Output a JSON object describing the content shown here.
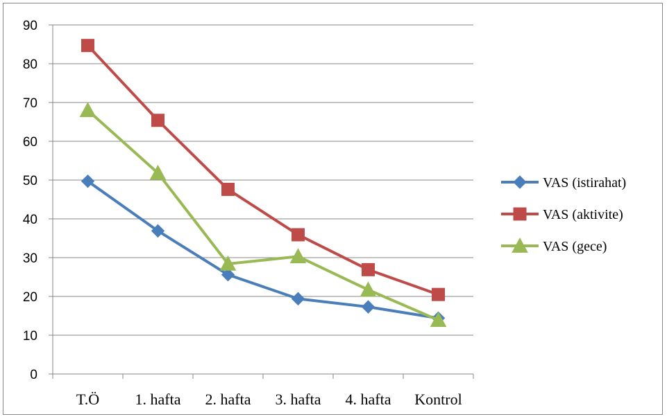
{
  "chart_data": {
    "type": "line",
    "categories": [
      "T.Ö",
      "1. hafta",
      "2. hafta",
      "3. hafta",
      "4. hafta",
      "Kontrol"
    ],
    "ylim": [
      0,
      90
    ],
    "yticks": [
      0,
      10,
      20,
      30,
      40,
      50,
      60,
      70,
      80,
      90
    ],
    "grid": true,
    "legend_position": "right",
    "series": [
      {
        "name": "VAS (istirahat)",
        "color": "#4A7EBB",
        "marker": "diamond",
        "values": [
          49.7,
          36.9,
          25.6,
          19.4,
          17.3,
          14.4
        ]
      },
      {
        "name": "VAS (aktivite)",
        "color": "#BE4B48",
        "marker": "square",
        "values": [
          84.7,
          65.4,
          47.6,
          35.9,
          26.9,
          20.5
        ]
      },
      {
        "name": "VAS (gece)",
        "color": "#98B954",
        "marker": "triangle",
        "values": [
          68.0,
          51.8,
          28.4,
          30.3,
          21.7,
          13.9
        ]
      }
    ]
  }
}
